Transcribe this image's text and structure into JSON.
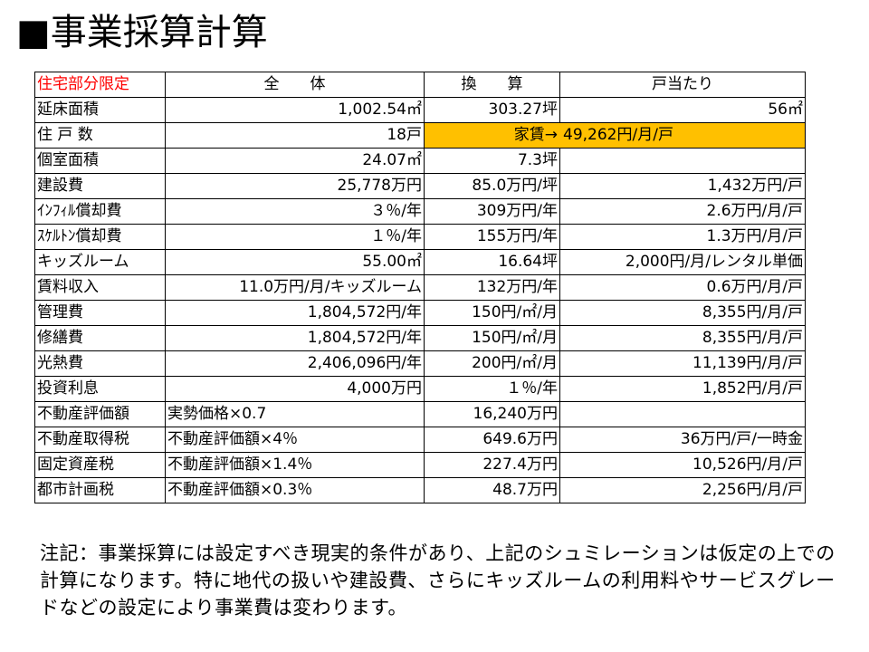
{
  "title": "■事業採算計算",
  "header": {
    "col0": "住宅部分限定",
    "col1": "全　　体",
    "col2": "換　　算",
    "col3": "戸当たり"
  },
  "rows": [
    {
      "label": "延床面積",
      "total": "1,002.54㎡",
      "conv": "303.27坪",
      "per": "56㎡"
    },
    {
      "label": "住 戸 数",
      "total": "18戸",
      "rent_label": "家賃→",
      "rent_value": "49,262円/月/戸"
    },
    {
      "label": "個室面積",
      "total": "24.07㎡",
      "conv": "7.3坪",
      "per": ""
    },
    {
      "label": "建設費",
      "total": "25,778万円",
      "conv": "85.0万円/坪",
      "per": "1,432万円/戸"
    },
    {
      "label": "ｲﾝﾌｨﾙ償却費",
      "total": "３％/年",
      "conv": "309万円/年",
      "per": "2.6万円/月/戸"
    },
    {
      "label": "ｽｹﾙﾄﾝ償却費",
      "total": "１％/年",
      "conv": "155万円/年",
      "per": "1.3万円/月/戸"
    },
    {
      "label": "キッズルーム",
      "total": "55.00㎡",
      "conv": "16.64坪",
      "per": "2,000円/月/レンタル単価"
    },
    {
      "label": "賃料収入",
      "total": "11.0万円/月/キッズルーム",
      "conv": "132万円/年",
      "per": "0.6万円/月/戸"
    },
    {
      "label": "管理費",
      "total": "1,804,572円/年",
      "conv": "150円/㎡/月",
      "per": "8,355円/月/戸"
    },
    {
      "label": "修繕費",
      "total": "1,804,572円/年",
      "conv": "150円/㎡/月",
      "per": "8,355円/月/戸"
    },
    {
      "label": "光熱費",
      "total": "2,406,096円/年",
      "conv": "200円/㎡/月",
      "per": "11,139円/月/戸"
    },
    {
      "label": "投資利息",
      "total": "4,000万円",
      "conv": "１％/年",
      "per": "1,852円/月/戸"
    },
    {
      "label": "不動産評価額",
      "total": "実勢価格×0.7",
      "conv": "16,240万円",
      "per": ""
    },
    {
      "label": "不動産取得税",
      "total": "不動産評価額×4％",
      "conv": "649.6万円",
      "per": "36万円/戸/一時金"
    },
    {
      "label": "固定資産税",
      "total": "不動産評価額×1.4％",
      "conv": "227.4万円",
      "per": "10,526円/月/戸"
    },
    {
      "label": "都市計画税",
      "total": "不動産評価額×0.3％",
      "conv": "48.7万円",
      "per": "2,256円/月/戸"
    }
  ],
  "note": "注記：事業採算には設定すべき現実的条件があり、上記のシュミレーションは仮定の上での計算になります。特に地代の扱いや建設費、さらにキッズルームの利用料やサービスグレードなどの設定により事業費は変わります。",
  "colors": {
    "highlight": "#ffc000",
    "header_label": "#ff0000"
  }
}
